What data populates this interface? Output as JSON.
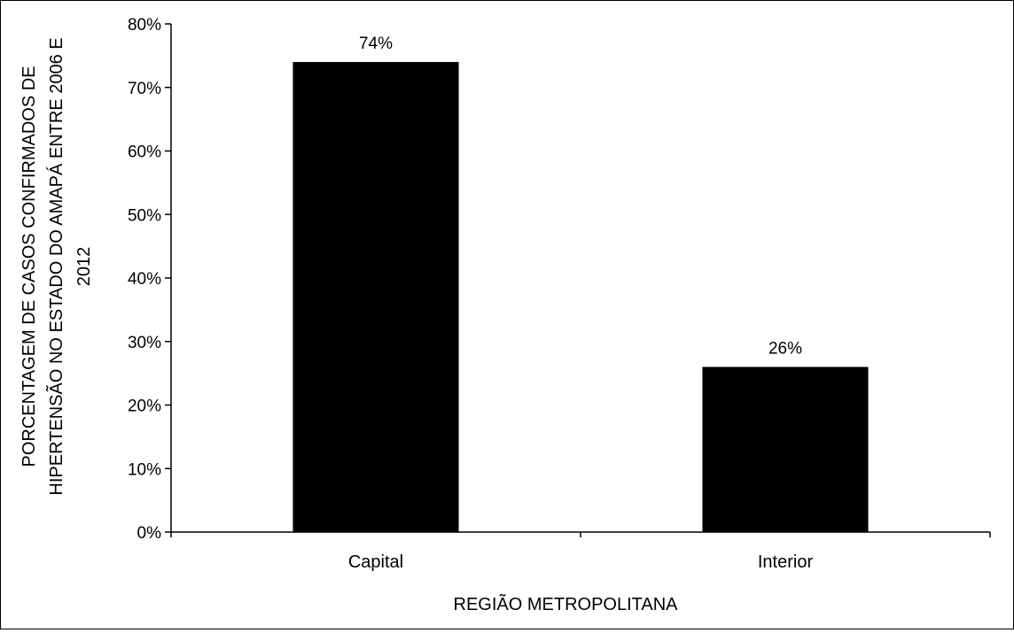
{
  "chart_data": {
    "type": "bar",
    "categories": [
      "Capital",
      "Interior"
    ],
    "values": [
      74,
      26
    ],
    "data_labels": [
      "74%",
      "26%"
    ],
    "title": "",
    "xlabel": "REGIÃO METROPOLITANA",
    "ylabel_lines": [
      "PORCENTAGEM DE CASOS CONFIRMADOS DE",
      "HIPERTENSÃO NO ESTADO DO AMAPÁ ENTRE 2006 E",
      "2012"
    ],
    "ylim": [
      0,
      80
    ],
    "yticks": [
      0,
      10,
      20,
      30,
      40,
      50,
      60,
      70,
      80
    ],
    "ytick_labels": [
      "0%",
      "10%",
      "20%",
      "30%",
      "40%",
      "50%",
      "60%",
      "70%",
      "80%"
    ],
    "grid": false,
    "legend": "none",
    "bar_color": "#000000"
  }
}
